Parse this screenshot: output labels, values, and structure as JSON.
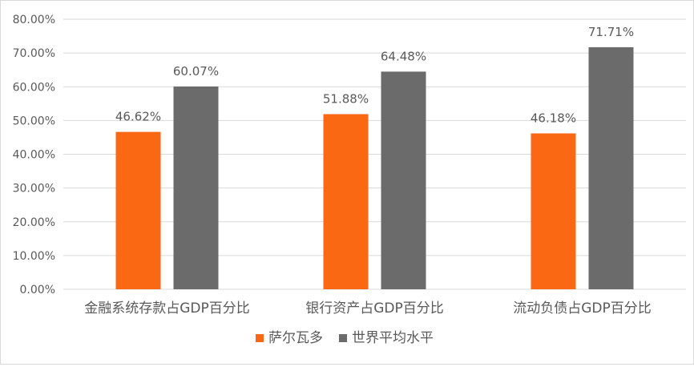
{
  "chart_data": {
    "type": "bar",
    "categories": [
      "金融系统存款占GDP百分比",
      "银行资产占GDP百分比",
      "流动负债占GDP百分比"
    ],
    "series": [
      {
        "name": "萨尔瓦多",
        "values": [
          46.62,
          51.88,
          46.18
        ],
        "labels": [
          "46.62%",
          "51.88%",
          "46.18%"
        ]
      },
      {
        "name": "世界平均水平",
        "values": [
          60.07,
          64.48,
          71.71
        ],
        "labels": [
          "60.07%",
          "64.48%",
          "71.71%"
        ]
      }
    ],
    "ylim": [
      0,
      80
    ],
    "yticks": [
      "0.00%",
      "10.00%",
      "20.00%",
      "30.00%",
      "40.00%",
      "50.00%",
      "60.00%",
      "70.00%",
      "80.00%"
    ],
    "grid": true,
    "legend_position": "bottom",
    "colors": {
      "series": [
        "#FA6814",
        "#6B6B6B"
      ],
      "grid": "#D9D9D9",
      "text": "#595959"
    }
  }
}
